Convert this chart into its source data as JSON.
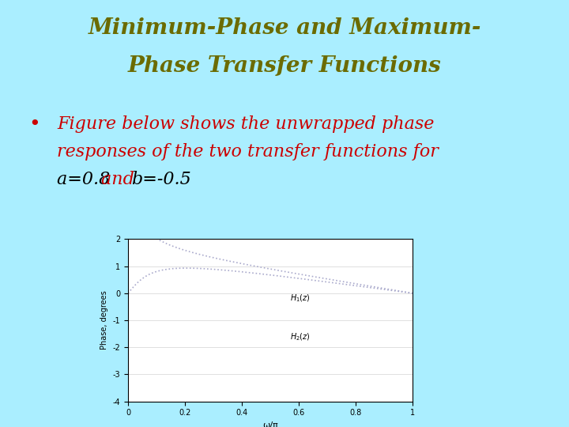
{
  "title_line1": "Minimum-Phase and Maximum-",
  "title_line2": "Phase Transfer Functions",
  "title_color": "#6b6b00",
  "title_fontsize": 20,
  "bullet_text_line1": "Figure below shows the unwrapped phase",
  "bullet_text_line2": "responses of the two transfer functions for",
  "bullet_text_line3a": "a=0.8 ",
  "bullet_text_line3b": "and ",
  "bullet_text_line3c": "b=-0.5",
  "bullet_color": "#cc0000",
  "bullet_fontsize": 16,
  "background_color": "#aaeeff",
  "plot_bg_color": "#ffffff",
  "ylabel": "Phase, degrees",
  "xlabel": "ω/π",
  "ylim": [
    -4,
    2
  ],
  "xlim": [
    0,
    1
  ],
  "yticks": [
    -4,
    -3,
    -2,
    -1,
    0,
    1,
    2
  ],
  "xticks": [
    0,
    0.2,
    0.4,
    0.6,
    0.8,
    1
  ],
  "label1": "H₁(z)",
  "label2": "H₂(z)",
  "a": 0.8,
  "b": -0.5,
  "line_color": "#aaaacc",
  "line_width": 1.2
}
